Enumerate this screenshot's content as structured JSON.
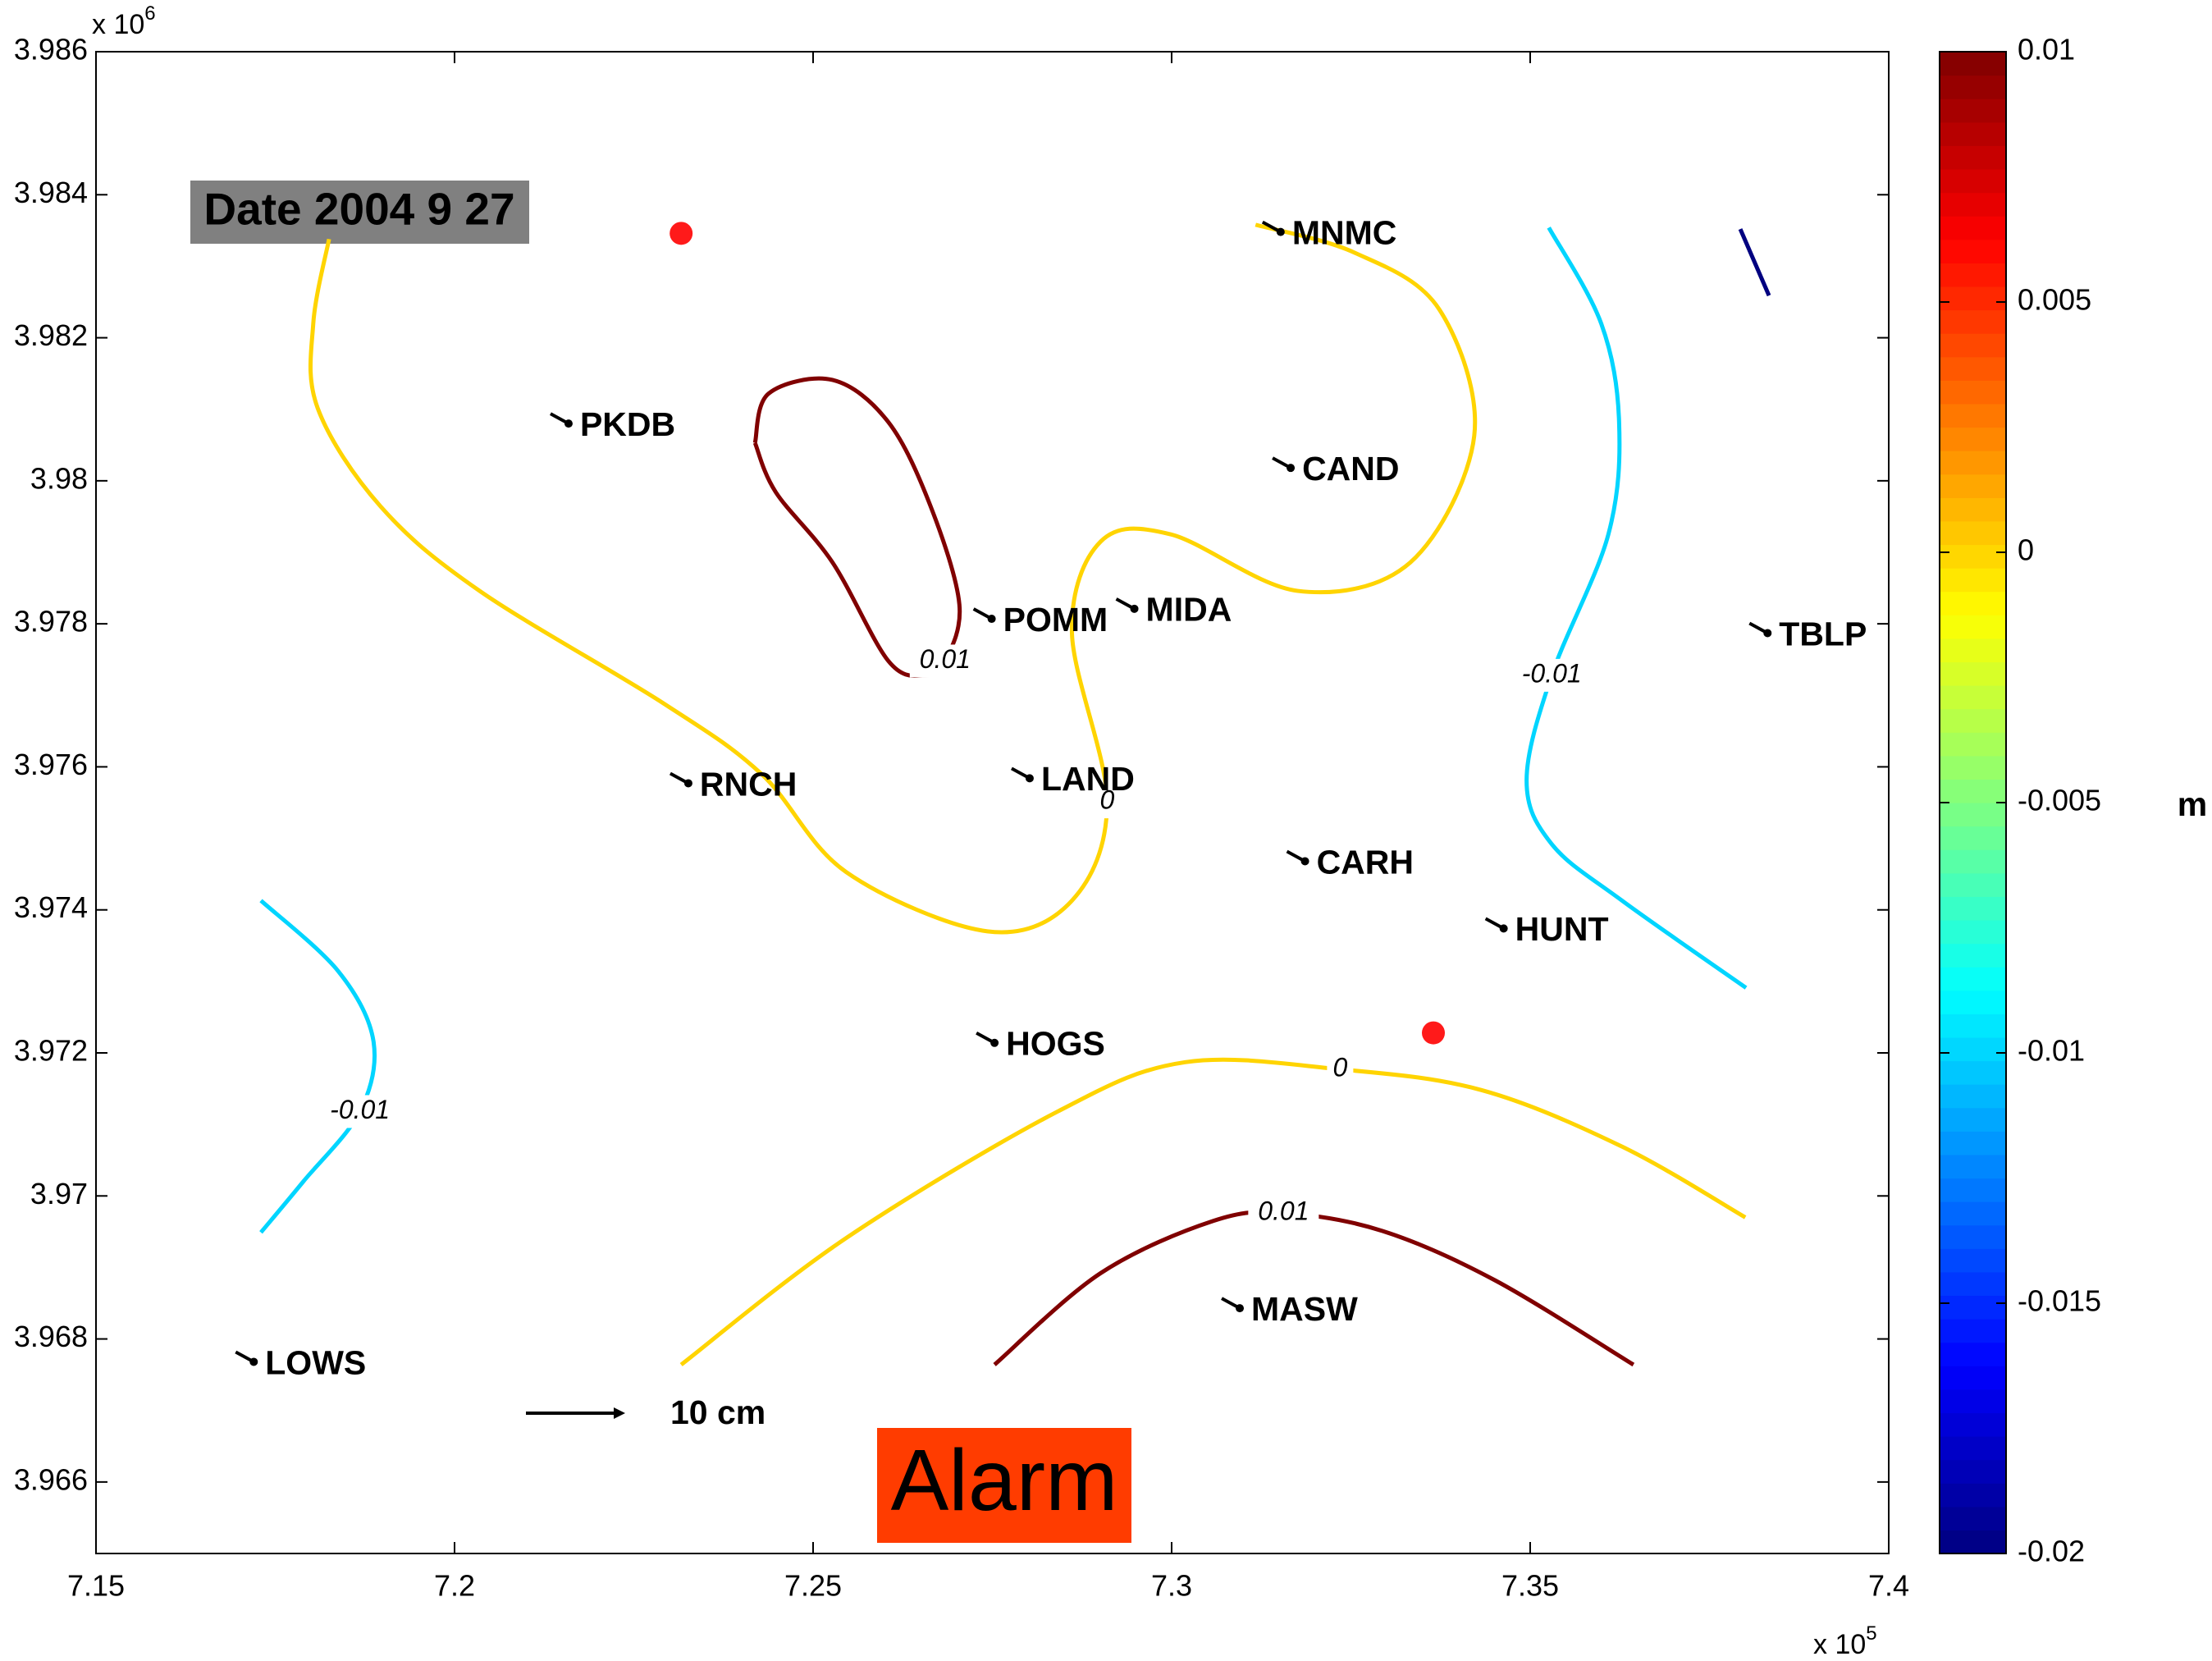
{
  "chart_data": {
    "type": "contour",
    "date_label": "Date 2004 9 27",
    "alarm_label": "Alarm",
    "scale_label": "10 cm",
    "x_multiplier": {
      "base": "x 10",
      "exp": "5"
    },
    "y_multiplier": {
      "base": "x 10",
      "exp": "6"
    },
    "xlim": [
      7.15,
      7.4
    ],
    "xticks": [
      7.15,
      7.2,
      7.25,
      7.3,
      7.35,
      7.4
    ],
    "ylim": [
      3.965,
      3.986
    ],
    "yticks": [
      3.966,
      3.968,
      3.97,
      3.972,
      3.974,
      3.976,
      3.978,
      3.98,
      3.982,
      3.984,
      3.986
    ],
    "colorbar": {
      "colormap": "jet",
      "clim": [
        -0.02,
        0.01
      ],
      "ticks": [
        0.01,
        0.005,
        0,
        -0.005,
        -0.01,
        -0.015,
        -0.02
      ],
      "unit": "m"
    },
    "contours": [
      {
        "level": 0,
        "label": "0",
        "x": [
          7.1825,
          7.1803,
          7.1809,
          7.1897,
          7.2035,
          7.2291,
          7.2428,
          7.2546,
          7.2743,
          7.2861,
          7.291,
          7.2861,
          7.2901,
          7.2999,
          7.3176,
          7.3333,
          7.3422,
          7.3373,
          7.3255,
          7.3117
        ],
        "y": [
          3.98338,
          3.9822,
          3.98102,
          3.97964,
          3.97846,
          3.97689,
          3.9759,
          3.97453,
          3.9737,
          3.97413,
          3.97551,
          3.97787,
          3.97915,
          3.97925,
          3.97846,
          3.97886,
          3.98063,
          3.9824,
          3.98319,
          3.98358
        ]
      },
      {
        "level": 0,
        "label": "0",
        "x": [
          7.2316,
          7.2546,
          7.2841,
          7.3019,
          7.3235,
          7.3432,
          7.3628,
          7.38
        ],
        "y": [
          3.96764,
          3.96941,
          3.97118,
          3.97187,
          3.97177,
          3.97148,
          3.97069,
          3.9697
        ]
      },
      {
        "level": 0.01,
        "label": "0.01",
        "x": [
          7.2419,
          7.2438,
          7.2527,
          7.2605,
          7.2664,
          7.2704,
          7.2684,
          7.2655,
          7.2605,
          7.2527,
          7.2448,
          7.2419
        ],
        "y": [
          3.98053,
          3.98122,
          3.98141,
          3.98082,
          3.97964,
          3.97827,
          3.97748,
          3.97728,
          3.97748,
          3.97886,
          3.97984,
          3.98053
        ]
      },
      {
        "level": 0.01,
        "label": "0.01",
        "x": [
          7.2753,
          7.2901,
          7.3058,
          7.3156,
          7.3294,
          7.3451,
          7.3644
        ],
        "y": [
          3.96764,
          3.96892,
          3.96965,
          3.96976,
          3.96951,
          3.96882,
          3.96764
        ]
      },
      {
        "level": -0.01,
        "label": "-0.01",
        "x": [
          7.3526,
          7.3599,
          7.3624,
          7.3609,
          7.353,
          7.3495,
          7.353,
          7.3628,
          7.3801
        ],
        "y": [
          3.98354,
          3.9822,
          3.98082,
          3.97925,
          3.97728,
          3.97581,
          3.97492,
          3.97413,
          3.97291
        ]
      },
      {
        "level": -0.01,
        "label": "-0.01",
        "x": [
          7.173,
          7.1838,
          7.1887,
          7.1868,
          7.1789,
          7.173
        ],
        "y": [
          3.97413,
          3.97314,
          3.97216,
          3.97118,
          3.9702,
          3.96949
        ]
      },
      {
        "level": -0.02,
        "x": [
          7.3793,
          7.3833
        ],
        "y": [
          3.98352,
          3.98259
        ]
      }
    ],
    "stations": [
      {
        "name": "PKDB",
        "x": 7.2159,
        "y": 3.9808
      },
      {
        "name": "MNMC",
        "x": 7.3152,
        "y": 3.98348
      },
      {
        "name": "CAND",
        "x": 7.3166,
        "y": 3.98018
      },
      {
        "name": "POMM",
        "x": 7.2749,
        "y": 3.97807
      },
      {
        "name": "MIDA",
        "x": 7.2948,
        "y": 3.97821
      },
      {
        "name": "TBLP",
        "x": 7.3831,
        "y": 3.97787
      },
      {
        "name": "RNCH",
        "x": 7.2326,
        "y": 3.97577
      },
      {
        "name": "LAND",
        "x": 7.2802,
        "y": 3.97584
      },
      {
        "name": "CARH",
        "x": 7.3186,
        "y": 3.97468
      },
      {
        "name": "HUNT",
        "x": 7.3463,
        "y": 3.97374
      },
      {
        "name": "HOGS",
        "x": 7.2753,
        "y": 3.97214
      },
      {
        "name": "MASW",
        "x": 7.3095,
        "y": 3.96843
      },
      {
        "name": "LOWS",
        "x": 7.172,
        "y": 3.96768
      }
    ],
    "alarms": {
      "x": [
        7.2316,
        7.3365
      ],
      "y": [
        3.98346,
        3.97228
      ]
    }
  }
}
